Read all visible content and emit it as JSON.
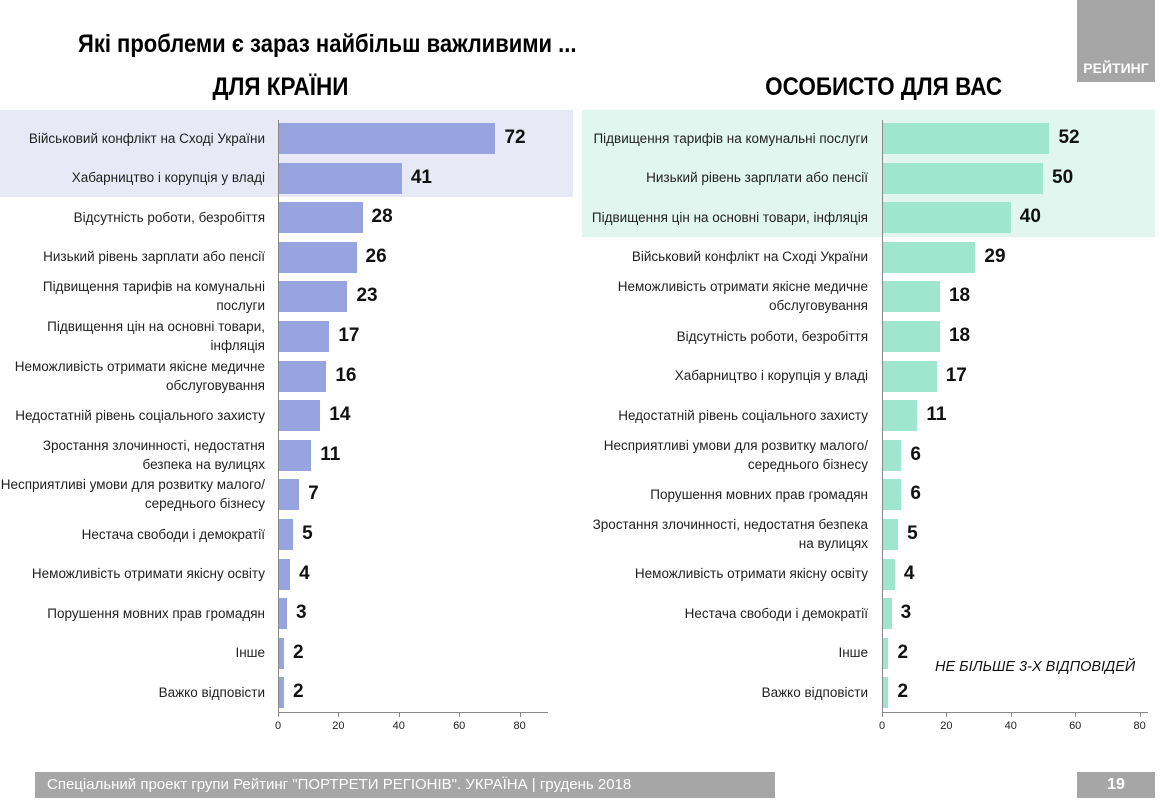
{
  "title": "Які проблеми є зараз найбільш важливими ...",
  "logo": "РЕЙТИНГ",
  "note": "НЕ БІЛЬШЕ 3-Х ВІДПОВІДЕЙ",
  "footer": "Спеціальний проект групи Рейтинг \"ПОРТРЕТИ РЕГІОНІВ\". УКРАЇНА | грудень 2018",
  "page_number": "19",
  "colors": {
    "left_bar": "#97a4e0",
    "right_bar": "#9fe6cf",
    "left_highlight": "#e7eaf6",
    "right_highlight": "#e1f6ef"
  },
  "chart_data": [
    {
      "type": "bar",
      "orientation": "horizontal",
      "title": "ДЛЯ КРАЇНИ",
      "xlim": [
        0,
        90
      ],
      "xticks": [
        "0",
        "20",
        "40",
        "60",
        "80"
      ],
      "highlighted_count": 2,
      "categories": [
        "Військовий конфлікт на Сході України",
        "Хабарництво і корупція у владі",
        "Відсутність роботи, безробіття",
        "Низький рівень зарплати або пенсії",
        "Підвищення тарифів на комунальні послуги",
        "Підвищення цін на основні товари, інфляція",
        "Неможливість отримати якісне медичне обслуговування",
        "Недостатній рівень соціального захисту",
        "Зростання злочинності, недостатня безпека на вулицях",
        "Несприятливі умови для розвитку малого/середнього бізнесу",
        "Нестача свободи і демократії",
        "Неможливість отримати якісну освіту",
        "Порушення мовних прав громадян",
        "Інше",
        "Важко відповісти"
      ],
      "values": [
        72,
        41,
        28,
        26,
        23,
        17,
        16,
        14,
        11,
        7,
        5,
        4,
        3,
        2,
        2
      ]
    },
    {
      "type": "bar",
      "orientation": "horizontal",
      "title": "ОСОБИСТО ДЛЯ ВАС",
      "xlim": [
        0,
        80
      ],
      "xticks": [
        "0",
        "20",
        "40",
        "60",
        "80"
      ],
      "highlighted_count": 3,
      "categories": [
        "Підвищення тарифів на комунальні послуги",
        "Низький рівень зарплати або пенсії",
        "Підвищення цін на основні товари, інфляція",
        "Військовий конфлікт на Сході України",
        "Неможливість отримати якісне медичне обслуговування",
        "Відсутність роботи, безробіття",
        "Хабарництво і корупція у владі",
        "Недостатній рівень соціального захисту",
        "Несприятливі умови для розвитку малого/середнього бізнесу",
        "Порушення мовних прав громадян",
        "Зростання злочинності, недостатня безпека на вулицях",
        "Неможливість отримати якісну освіту",
        "Нестача свободи і демократії",
        "Інше",
        "Важко відповісти"
      ],
      "values": [
        52,
        50,
        40,
        29,
        18,
        18,
        17,
        11,
        6,
        6,
        5,
        4,
        3,
        2,
        2
      ]
    }
  ]
}
